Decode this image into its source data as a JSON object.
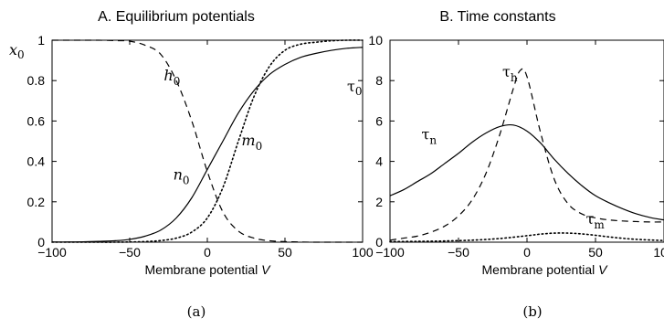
{
  "chart_data": [
    {
      "panel": "left",
      "type": "line",
      "title": "A. Equilibrium potentials",
      "xlabel": "Membrane potential",
      "xlabel_symbol": "V",
      "ylabel": "x",
      "ylabel_sub": "0",
      "xlim": [
        -100,
        100
      ],
      "ylim": [
        0,
        1
      ],
      "xticks": [
        -100,
        -50,
        0,
        50,
        100
      ],
      "yticks": [
        0,
        0.2,
        0.4,
        0.6,
        0.8,
        1
      ],
      "xtick_labels": [
        "−100",
        "−50",
        "0",
        "50",
        "100"
      ],
      "ytick_labels": [
        "0",
        "0.2",
        "0.4",
        "0.6",
        "0.8",
        "1"
      ],
      "grid": false,
      "caption": "(a)",
      "series": [
        {
          "name": "n",
          "name_sub": "0",
          "style": "solid",
          "x": [
            -100,
            -90,
            -80,
            -70,
            -60,
            -50,
            -40,
            -30,
            -20,
            -10,
            0,
            10,
            20,
            30,
            40,
            50,
            60,
            70,
            80,
            90,
            100
          ],
          "y": [
            0.001,
            0.001,
            0.002,
            0.004,
            0.007,
            0.014,
            0.03,
            0.06,
            0.12,
            0.22,
            0.36,
            0.5,
            0.64,
            0.75,
            0.83,
            0.88,
            0.915,
            0.935,
            0.95,
            0.96,
            0.965
          ]
        },
        {
          "name": "h",
          "name_sub": "0",
          "style": "dashed",
          "x": [
            -100,
            -90,
            -80,
            -70,
            -60,
            -50,
            -40,
            -30,
            -20,
            -10,
            0,
            10,
            20,
            30,
            40,
            50,
            60,
            70,
            80,
            90,
            100
          ],
          "y": [
            1.0,
            1.0,
            1.0,
            1.0,
            0.998,
            0.995,
            0.975,
            0.93,
            0.8,
            0.6,
            0.35,
            0.15,
            0.055,
            0.02,
            0.007,
            0.003,
            0.001,
            0.0,
            0.0,
            0.0,
            0.0
          ]
        },
        {
          "name": "m",
          "name_sub": "0",
          "style": "dotted",
          "x": [
            -100,
            -90,
            -80,
            -70,
            -60,
            -50,
            -40,
            -30,
            -20,
            -10,
            0,
            10,
            20,
            30,
            40,
            50,
            60,
            70,
            80,
            90,
            100
          ],
          "y": [
            0.0,
            0.0,
            0.0,
            0.0,
            0.0,
            0.001,
            0.003,
            0.008,
            0.02,
            0.05,
            0.12,
            0.27,
            0.5,
            0.72,
            0.87,
            0.95,
            0.98,
            0.99,
            0.997,
            1.0,
            1.0
          ]
        }
      ]
    },
    {
      "panel": "right",
      "type": "line",
      "title": "B. Time constants",
      "xlabel": "Membrane potential",
      "xlabel_symbol": "V",
      "ylabel": "τ",
      "ylabel_sub": "0",
      "xlim": [
        -100,
        100
      ],
      "ylim": [
        0,
        10
      ],
      "xticks": [
        -100,
        -50,
        0,
        50,
        100
      ],
      "yticks": [
        0,
        2,
        4,
        6,
        8,
        10
      ],
      "xtick_labels": [
        "−100",
        "−50",
        "0",
        "50",
        "100"
      ],
      "ytick_labels": [
        "0",
        "2",
        "4",
        "6",
        "8",
        "10"
      ],
      "grid": false,
      "caption": "(b)",
      "series": [
        {
          "name": "τ",
          "name_sub": "n",
          "style": "solid",
          "x": [
            -100,
            -90,
            -80,
            -70,
            -60,
            -50,
            -40,
            -30,
            -20,
            -10,
            0,
            10,
            20,
            30,
            40,
            50,
            60,
            70,
            80,
            90,
            100
          ],
          "y": [
            2.3,
            2.6,
            3.0,
            3.4,
            3.9,
            4.4,
            4.95,
            5.4,
            5.72,
            5.8,
            5.5,
            4.9,
            4.1,
            3.4,
            2.8,
            2.3,
            1.95,
            1.65,
            1.4,
            1.22,
            1.1
          ]
        },
        {
          "name": "τ",
          "name_sub": "h",
          "style": "dashed",
          "x": [
            -100,
            -90,
            -80,
            -70,
            -60,
            -50,
            -40,
            -30,
            -20,
            -10,
            -5,
            0,
            10,
            20,
            30,
            40,
            50,
            60,
            70,
            80,
            90,
            100
          ],
          "y": [
            0.1,
            0.2,
            0.3,
            0.5,
            0.8,
            1.3,
            2.1,
            3.4,
            5.3,
            7.6,
            8.5,
            8.2,
            5.4,
            3.1,
            1.9,
            1.4,
            1.2,
            1.1,
            1.05,
            1.02,
            1.0,
            1.0
          ]
        },
        {
          "name": "τ",
          "name_sub": "m",
          "style": "dotted",
          "x": [
            -100,
            -80,
            -60,
            -40,
            -20,
            0,
            10,
            20,
            30,
            40,
            50,
            60,
            70,
            80,
            100
          ],
          "y": [
            0.03,
            0.04,
            0.06,
            0.1,
            0.18,
            0.32,
            0.4,
            0.45,
            0.45,
            0.41,
            0.34,
            0.26,
            0.19,
            0.14,
            0.08
          ]
        }
      ]
    }
  ]
}
